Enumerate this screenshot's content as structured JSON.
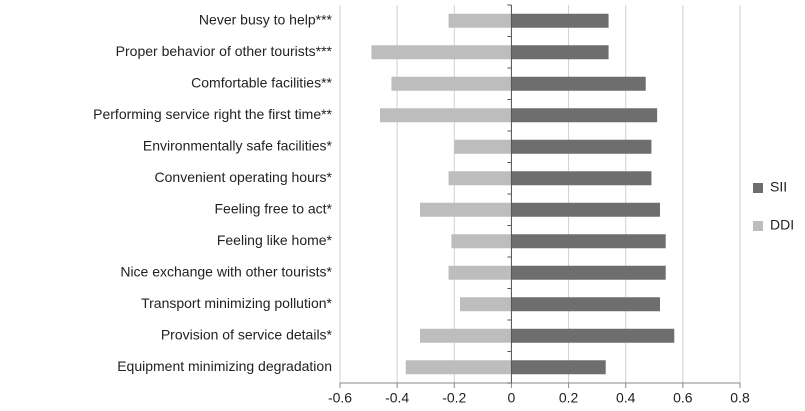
{
  "chart_data": {
    "type": "hbar",
    "categories": [
      "Never busy to help***",
      "Proper behavior of other tourists***",
      "Comfortable facilities**",
      "Performing service right the first time**",
      "Environmentally safe facilities*",
      "Convenient operating hours*",
      "Feeling free to act*",
      "Feeling like home*",
      "Nice exchange with other tourists*",
      "Transport minimizing pollution*",
      "Provision of service details*",
      "Equipment minimizing degradation"
    ],
    "series": [
      {
        "name": "SII",
        "color": "#6e6e6e",
        "values": [
          0.34,
          0.34,
          0.47,
          0.51,
          0.49,
          0.49,
          0.52,
          0.54,
          0.54,
          0.52,
          0.57,
          0.33
        ]
      },
      {
        "name": "DDI",
        "color": "#bdbdbd",
        "values": [
          -0.22,
          -0.49,
          -0.42,
          -0.46,
          -0.2,
          -0.22,
          -0.32,
          -0.21,
          -0.22,
          -0.18,
          -0.32,
          -0.37
        ]
      }
    ],
    "xlim": [
      -0.6,
      0.8
    ],
    "xticks": [
      -0.6,
      -0.4,
      -0.2,
      0,
      0.2,
      0.4,
      0.6,
      0.8
    ],
    "grid": true,
    "legend": "right"
  }
}
